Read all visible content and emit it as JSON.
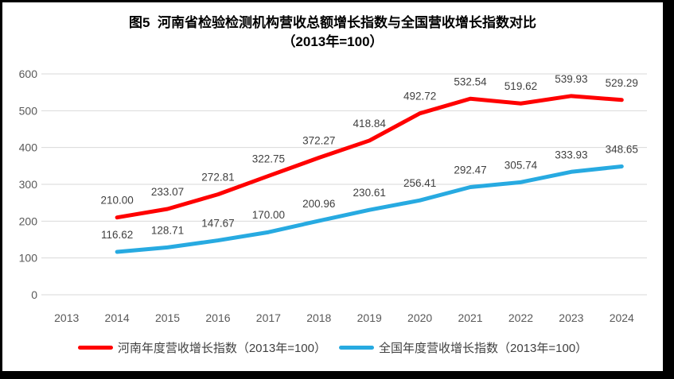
{
  "title": {
    "line1": "图5  河南省检验检测机构营收总额增长指数与全国营收增长指数对比",
    "line2": "（2013年=100）"
  },
  "colors": {
    "henan_line": "#ff0000",
    "national_line": "#27aae1",
    "gridline": "#d9d9d9",
    "axis_text": "#595959",
    "data_label_text": "#404040",
    "frame_border": "#000000"
  },
  "chart_data": {
    "type": "line",
    "title": "图5  河南省检验检测机构营收总额增长指数与全国营收增长指数对比（2013年=100）",
    "categories": [
      "2013",
      "2014",
      "2015",
      "2016",
      "2017",
      "2018",
      "2019",
      "2020",
      "2021",
      "2022",
      "2023",
      "2024"
    ],
    "series": [
      {
        "name": "河南年度营收增长指数（2013年=100）",
        "color": "#ff0000",
        "values": [
          null,
          210.0,
          233.07,
          272.81,
          322.75,
          372.27,
          418.84,
          492.72,
          532.54,
          519.62,
          539.93,
          529.29
        ]
      },
      {
        "name": "全国年度营收增长指数（2013年=100）",
        "color": "#27aae1",
        "values": [
          null,
          116.62,
          128.71,
          147.67,
          170.0,
          200.96,
          230.61,
          256.41,
          292.47,
          305.74,
          333.93,
          348.65
        ]
      }
    ],
    "xlabel": "",
    "ylabel": "",
    "ylim": [
      0,
      600
    ],
    "ytick_interval": 100,
    "y_ticks": [
      0,
      100,
      200,
      300,
      400,
      500,
      600
    ],
    "grid": true,
    "data_labels": true,
    "data_label_decimals": 2,
    "legend_position": "bottom"
  }
}
